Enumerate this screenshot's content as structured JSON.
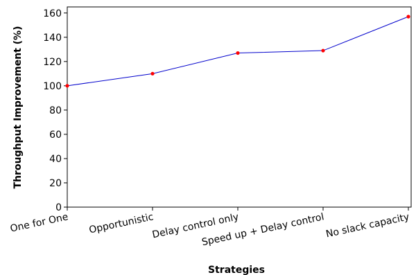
{
  "chart_data": {
    "type": "line",
    "title": "",
    "xlabel": "Strategies",
    "ylabel": "Throughput Improvement (%)",
    "categories": [
      "One for One",
      "Opportunistic",
      "Delay control only",
      "Speed up + Delay control",
      "No slack capacity"
    ],
    "series": [
      {
        "values": [
          100,
          110,
          127,
          129,
          157
        ]
      }
    ],
    "ylim": [
      0,
      165
    ],
    "yticks": [
      0,
      20,
      40,
      60,
      80,
      100,
      120,
      140,
      160
    ],
    "grid": false,
    "legend": "none",
    "colors": {
      "line": "#0000cc",
      "marker": "#ff0000",
      "axis": "#000000"
    }
  }
}
